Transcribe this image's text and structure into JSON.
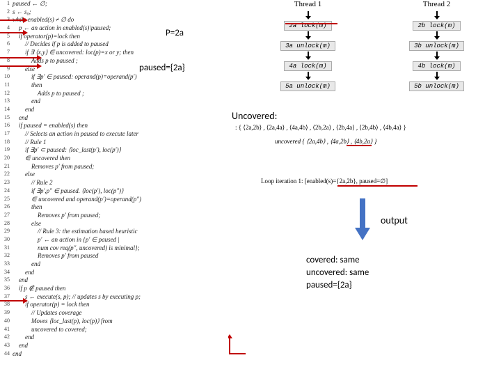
{
  "code": [
    {
      "n": "1",
      "t": "paused ← ∅;"
    },
    {
      "n": "2",
      "t": "s ← s₀;"
    },
    {
      "n": "3",
      "t": "while enabled(s) ≠ ∅ do"
    },
    {
      "n": "4",
      "t": "    p ← an action in enabled(s)\\paused;"
    },
    {
      "n": "5",
      "t": "    if operator(p)=lock then"
    },
    {
      "n": "6",
      "t": "        // Decides if p is added to paused"
    },
    {
      "n": "7",
      "t": "        if ∃ ⟨x,y⟩ ∈ uncovered: loc(p)=x or y; then"
    },
    {
      "n": "8",
      "t": "            Adds p to paused ;"
    },
    {
      "n": "9",
      "t": "        else"
    },
    {
      "n": "10",
      "t": "            if ∃p′ ∈ paused: operand(p)=operand(p′)"
    },
    {
      "n": "11",
      "t": "            then"
    },
    {
      "n": "12",
      "t": "                Adds p to paused ;"
    },
    {
      "n": "13",
      "t": "            end"
    },
    {
      "n": "14",
      "t": "        end"
    },
    {
      "n": "15",
      "t": "    end"
    },
    {
      "n": "16",
      "t": "    if paused = enabled(s) then"
    },
    {
      "n": "17",
      "t": "        // Selects an action in paused to execute later"
    },
    {
      "n": "18",
      "t": "        // Rule 1"
    },
    {
      "n": "19",
      "t": "        if ∃p′ ⊂ paused: ⟨loc_last(p′), loc(p′)⟩"
    },
    {
      "n": "20",
      "t": "        ∈ uncovered then"
    },
    {
      "n": "21",
      "t": "            Removes p′ from paused;"
    },
    {
      "n": "22",
      "t": "        else"
    },
    {
      "n": "23",
      "t": "            // Rule 2"
    },
    {
      "n": "24",
      "t": "            if ∃p′,p″ ∈ paused. ⟨loc(p′), loc(p″)⟩"
    },
    {
      "n": "25",
      "t": "            ∈ uncovered and operand(p′)=operand(p″)"
    },
    {
      "n": "26",
      "t": "            then"
    },
    {
      "n": "27",
      "t": "                Removes p′ from paused;"
    },
    {
      "n": "28",
      "t": "            else"
    },
    {
      "n": "29",
      "t": "                // Rule 3: the estimation based heuristic"
    },
    {
      "n": "30",
      "t": "                p′ ← an action in {p′ ∈ paused |"
    },
    {
      "n": "31",
      "t": "                num cov req(p″, uncovered) is minimal};"
    },
    {
      "n": "32",
      "t": "                Removes p′ from paused"
    },
    {
      "n": "33",
      "t": "            end"
    },
    {
      "n": "34",
      "t": "        end"
    },
    {
      "n": "35",
      "t": "    end"
    },
    {
      "n": "36",
      "t": "    if p ∉ paused then"
    },
    {
      "n": "37",
      "t": "        s ← execute(s, p); // updates s by executing p;"
    },
    {
      "n": "38",
      "t": "        if operator(p) = lock then"
    },
    {
      "n": "39",
      "t": "            // Updates coverage"
    },
    {
      "n": "40",
      "t": "            Moves ⟨loc_last(p), loc(p)⟩ from"
    },
    {
      "n": "41",
      "t": "            uncovered to covered;"
    },
    {
      "n": "42",
      "t": "        end"
    },
    {
      "n": "43",
      "t": "    end"
    },
    {
      "n": "44",
      "t": "end"
    }
  ],
  "annot_p": "P=2a",
  "annot_paused": "paused={2a}",
  "threads": {
    "header1": "Thread 1",
    "header2": "Thread 2",
    "rows": [
      [
        "2a lock(m)",
        "2b lock(m)"
      ],
      [
        "3a unlock(m)",
        "3b unlock(m)"
      ],
      [
        "4a lock(m)",
        "4b lock(m)"
      ],
      [
        "5a unlock(m)",
        "5b unlock(m)"
      ]
    ]
  },
  "uncovered_label": "Uncovered:",
  "uncovered_sets": {
    "line1": ": { ⟨2a,2b⟩ , ⟨2a,4a⟩ , ⟨4a,4b⟩ , ⟨2b,2a⟩ , ⟨2b,4a⟩ , ⟨2b,4b⟩ , ⟨4b,4a⟩ }",
    "line2": "uncovered   { ⟨2a,4b⟩ , ⟨4a,2b⟩ , ⟨4b,2a⟩ }"
  },
  "loop_text": "Loop iteration 1: [enabled(s)={2a,2b}, paused=∅]",
  "output_label": "output",
  "output_body": {
    "l1": "covered: same",
    "l2": "uncovered: same",
    "l3": "paused={2a}"
  },
  "colors": {
    "red": "#c00000",
    "blue": "#4472c4",
    "box_bg": "#e8e8e8"
  }
}
